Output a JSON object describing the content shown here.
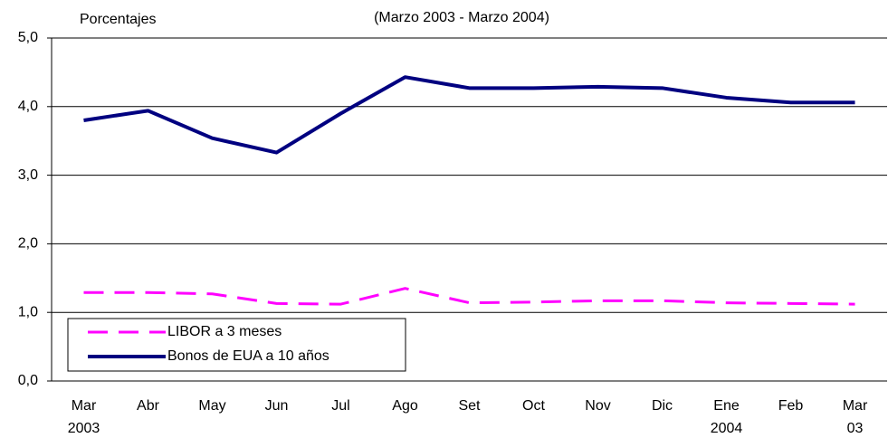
{
  "chart_data": {
    "type": "line",
    "title": "(Marzo 2003 - Marzo 2004)",
    "y_label": "Porcentajes",
    "categories": [
      "Mar",
      "Abr",
      "May",
      "Jun",
      "Jul",
      "Ago",
      "Set",
      "Oct",
      "Nov",
      "Dic",
      "Ene",
      "Feb",
      "Mar"
    ],
    "category_sublabels": [
      "2003",
      null,
      null,
      null,
      null,
      null,
      null,
      null,
      null,
      null,
      "2004",
      null,
      "03"
    ],
    "series": [
      {
        "name": "LIBOR a 3  meses",
        "color": "#ff00ff",
        "dashed": true,
        "values": [
          1.29,
          1.29,
          1.27,
          1.13,
          1.12,
          1.35,
          1.14,
          1.15,
          1.17,
          1.17,
          1.14,
          1.13,
          1.12
        ]
      },
      {
        "name": "Bonos de EUA a 10 años",
        "color": "#000080",
        "dashed": false,
        "values": [
          3.8,
          3.94,
          3.54,
          3.33,
          3.9,
          4.43,
          4.27,
          4.27,
          4.29,
          4.27,
          4.13,
          4.06,
          4.06
        ]
      }
    ],
    "ylim": [
      0,
      5
    ],
    "yticks": [
      {
        "value": 0,
        "label": "0,0"
      },
      {
        "value": 1,
        "label": "1,0"
      },
      {
        "value": 2,
        "label": "2,0"
      },
      {
        "value": 3,
        "label": "3,0"
      },
      {
        "value": 4,
        "label": "4,0"
      },
      {
        "value": 5,
        "label": "5,0"
      }
    ],
    "grid": true,
    "legend": "lower left"
  }
}
